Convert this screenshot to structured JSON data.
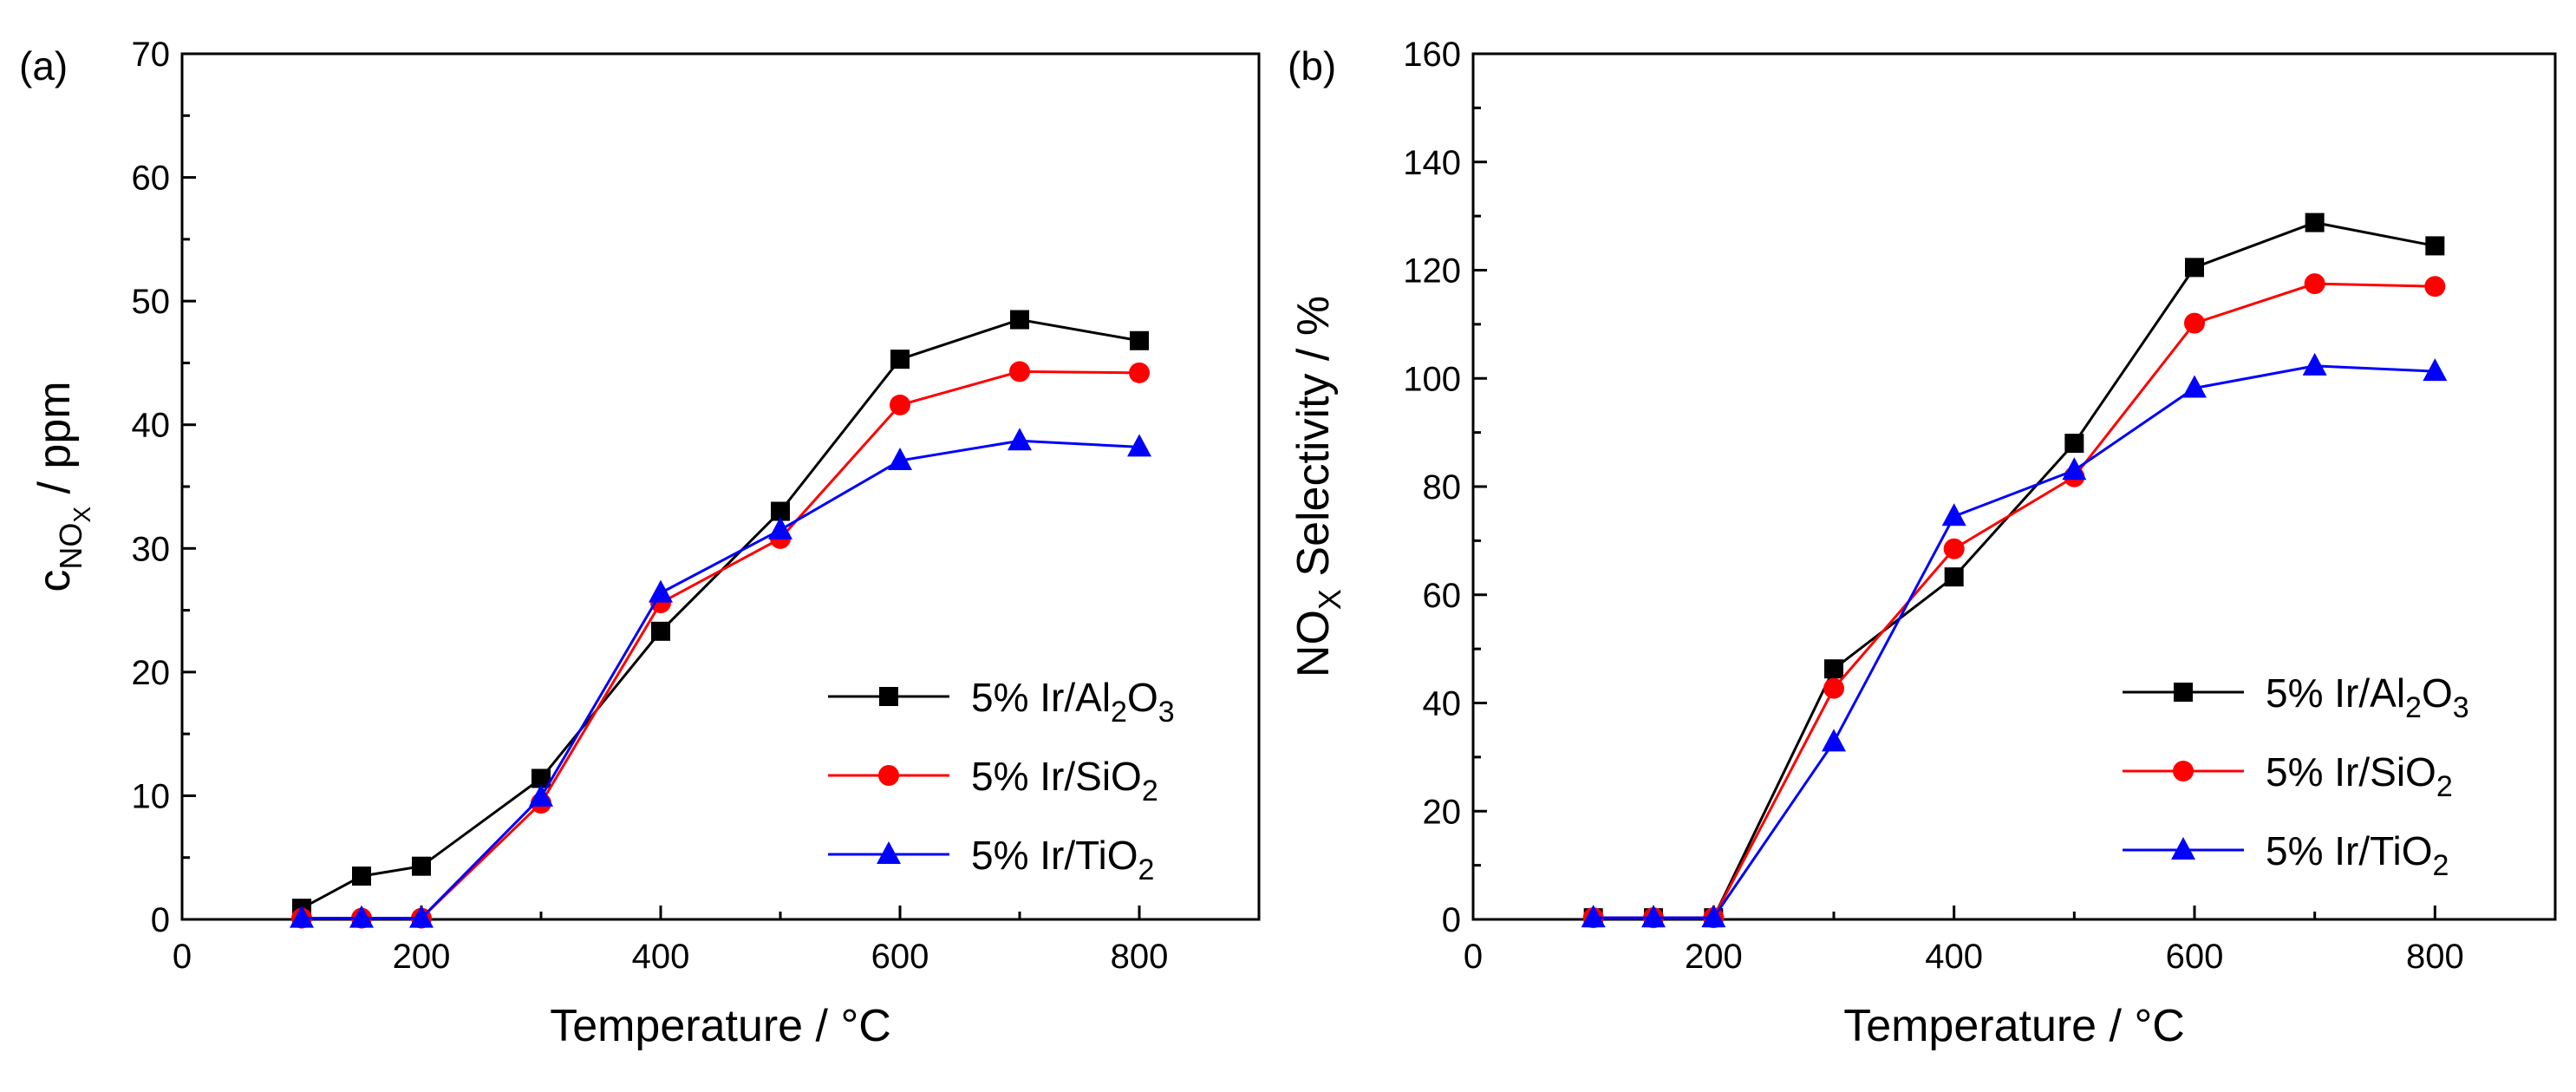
{
  "chart_data": [
    {
      "type": "line",
      "panel_label": "(a)",
      "xlabel": "Temperature / °C",
      "ylabel": {
        "main": "c",
        "sub": "NO",
        "subsub": "X",
        "tail": " / ppm"
      },
      "xlim": [
        0,
        900
      ],
      "ylim": [
        0,
        70
      ],
      "xticks": [
        0,
        200,
        400,
        600,
        800
      ],
      "yticks": [
        0,
        10,
        20,
        30,
        40,
        50,
        60,
        70
      ],
      "legend_position": "bottom-right",
      "x": [
        100,
        150,
        200,
        300,
        400,
        500,
        600,
        700,
        800
      ],
      "series": [
        {
          "name": "5% Ir/Al2O3",
          "label_parts": [
            "5% Ir/Al",
            "2",
            "O",
            "3"
          ],
          "color": "#000000",
          "marker": "square",
          "values": [
            0.9,
            3.5,
            4.3,
            11.4,
            23.3,
            33.0,
            45.3,
            48.5,
            46.8
          ]
        },
        {
          "name": "5% Ir/SiO2",
          "label_parts": [
            "5% Ir/SiO",
            "2"
          ],
          "color": "#ff0000",
          "marker": "circle",
          "values": [
            0.1,
            0.1,
            0.1,
            9.4,
            25.6,
            30.8,
            41.6,
            44.3,
            44.2
          ]
        },
        {
          "name": "5% Ir/TiO2",
          "label_parts": [
            "5% Ir/TiO",
            "2"
          ],
          "color": "#0000ff",
          "marker": "triangle",
          "values": [
            0.1,
            0.1,
            0.1,
            9.9,
            26.4,
            31.5,
            37.1,
            38.7,
            38.2
          ]
        }
      ]
    },
    {
      "type": "line",
      "panel_label": "(b)",
      "xlabel": "Temperature / °C",
      "ylabel": {
        "main": "NO",
        "sub": "X",
        "tail": " Selectivity / %"
      },
      "xlim": [
        0,
        900
      ],
      "ylim": [
        0,
        160
      ],
      "xticks": [
        0,
        200,
        400,
        600,
        800
      ],
      "yticks": [
        0,
        20,
        40,
        60,
        80,
        100,
        120,
        140,
        160
      ],
      "legend_position": "bottom-right",
      "x": [
        100,
        150,
        200,
        300,
        400,
        500,
        600,
        700,
        800
      ],
      "series": [
        {
          "name": "5% Ir/Al2O3",
          "label_parts": [
            "5% Ir/Al",
            "2",
            "O",
            "3"
          ],
          "color": "#000000",
          "marker": "square",
          "values": [
            0.3,
            0.3,
            0.3,
            46.3,
            63.3,
            88.0,
            120.5,
            128.8,
            124.5
          ]
        },
        {
          "name": "5% Ir/SiO2",
          "label_parts": [
            "5% Ir/SiO",
            "2"
          ],
          "color": "#ff0000",
          "marker": "circle",
          "values": [
            0.3,
            0.3,
            0.3,
            42.7,
            68.5,
            81.8,
            110.2,
            117.5,
            117.0
          ]
        },
        {
          "name": "5% Ir/TiO2",
          "label_parts": [
            "5% Ir/TiO",
            "2"
          ],
          "color": "#0000ff",
          "marker": "triangle",
          "values": [
            0.3,
            0.3,
            0.3,
            32.8,
            74.5,
            83.0,
            98.2,
            102.3,
            101.3
          ]
        }
      ]
    }
  ]
}
